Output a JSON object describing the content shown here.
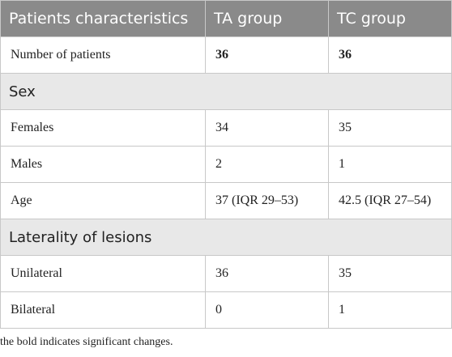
{
  "table": {
    "headers": [
      "Patients characteristics",
      "TA group",
      "TC group"
    ],
    "rows": [
      {
        "type": "data",
        "cells": [
          "Number of patients",
          "36",
          "36"
        ],
        "bold_values": true
      },
      {
        "type": "section",
        "label": "Sex"
      },
      {
        "type": "data",
        "cells": [
          "Females",
          "34",
          "35"
        ],
        "bold_values": false
      },
      {
        "type": "data",
        "cells": [
          "Males",
          "2",
          "1"
        ],
        "bold_values": false
      },
      {
        "type": "data",
        "cells": [
          "Age",
          "37 (IQR 29–53)",
          "42.5 (IQR 27–54)"
        ],
        "bold_values": false
      },
      {
        "type": "section",
        "label": "Laterality of lesions"
      },
      {
        "type": "data",
        "cells": [
          "Unilateral",
          "36",
          "35"
        ],
        "bold_values": false
      },
      {
        "type": "data",
        "cells": [
          "Bilateral",
          "0",
          "1"
        ],
        "bold_values": false
      }
    ]
  },
  "footnote": "the bold indicates significant changes.",
  "colors": {
    "header_bg": "#8a8a8a",
    "section_bg": "#e8e8e8",
    "border": "#c8c8c8"
  }
}
